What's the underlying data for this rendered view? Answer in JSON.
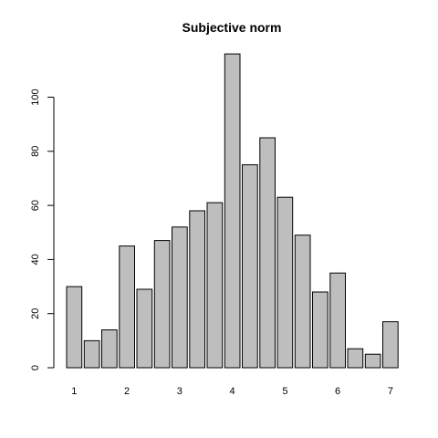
{
  "chart_data": {
    "type": "bar",
    "title": "Subjective norm",
    "xlabel": "",
    "ylabel": "",
    "values": [
      30,
      10,
      14,
      45,
      29,
      47,
      52,
      58,
      61,
      116,
      75,
      85,
      63,
      49,
      28,
      35,
      7,
      5,
      17
    ],
    "x_tick_labels": [
      "1",
      "2",
      "3",
      "4",
      "5",
      "6",
      "7"
    ],
    "y_ticks": [
      0,
      20,
      40,
      60,
      80,
      100
    ],
    "y_tick_labels": [
      "0",
      "20",
      "40",
      "60",
      "80",
      "100"
    ],
    "ylim": [
      0,
      116
    ],
    "bar_color": "#bebebe",
    "bar_border": "#000000",
    "grid": false
  }
}
